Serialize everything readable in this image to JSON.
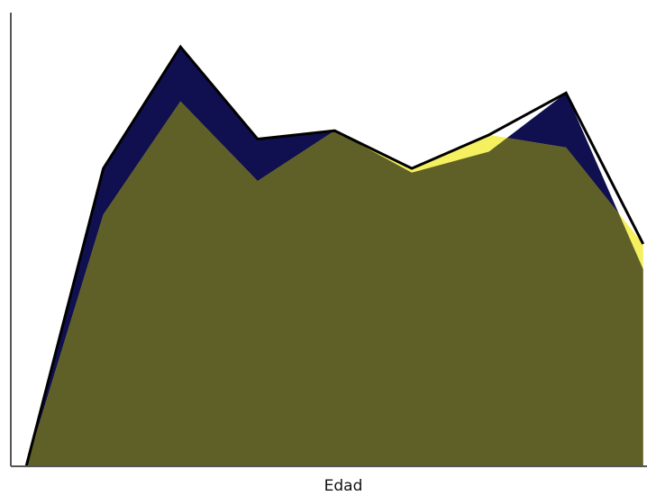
{
  "chart_data": {
    "type": "area",
    "xlabel": "Edad",
    "ylabel": "",
    "title": "",
    "x": [
      0,
      1,
      2,
      3,
      4,
      5,
      6,
      7,
      8
    ],
    "xlim": [
      -0.2,
      8.05
    ],
    "ylim": [
      0,
      100
    ],
    "grid": false,
    "legend": "none",
    "series": [
      {
        "name": "",
        "color": "#101050",
        "values": [
          0,
          71,
          100,
          78,
          80,
          70,
          75,
          89,
          47
        ]
      },
      {
        "name": "",
        "color": "#f5f060",
        "values": [
          0,
          60,
          87,
          68,
          80,
          71,
          79,
          76,
          53
        ]
      }
    ],
    "overlap_color": "#5f5f28",
    "outline_color": "#000000",
    "axis_color": "#555555"
  }
}
